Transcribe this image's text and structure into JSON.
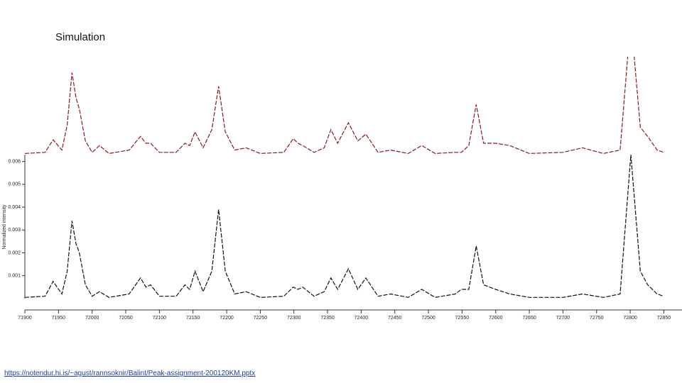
{
  "chart_data": [
    {
      "type": "line",
      "title": "Simulation",
      "color": "#8b1a1a",
      "dashed": true,
      "xlim": [
        71900,
        72877
      ],
      "ylim": [
        0,
        0.0043
      ],
      "x": [
        71900,
        71930,
        71942,
        71955,
        71963,
        71970,
        71976,
        71981,
        71990,
        72000,
        72011,
        72025,
        72055,
        72072,
        72080,
        72087,
        72100,
        72125,
        72138,
        72145,
        72153,
        72165,
        72178,
        72188,
        72198,
        72212,
        72229,
        72250,
        72285,
        72299,
        72306,
        72313,
        72330,
        72345,
        72355,
        72365,
        72381,
        72395,
        72407,
        72425,
        72444,
        72470,
        72490,
        72510,
        72540,
        72549,
        72560,
        72571,
        72582,
        72600,
        72621,
        72650,
        72700,
        72729,
        72760,
        72785,
        72801,
        72815,
        72826,
        72840,
        72850
      ],
      "values": [
        5e-05,
        0.0001,
        0.00065,
        0.0002,
        0.0013,
        0.0036,
        0.0025,
        0.002,
        0.0006,
        0.0001,
        0.0004,
        5e-05,
        0.0002,
        0.0008,
        0.0005,
        0.0005,
        0.0001,
        0.0001,
        0.0005,
        0.0004,
        0.001,
        0.0003,
        0.0011,
        0.003,
        0.001,
        0.0002,
        0.0003,
        5e-05,
        0.0001,
        0.0007,
        0.0005,
        0.0004,
        0.0001,
        0.0003,
        0.0011,
        0.0005,
        0.0014,
        0.0006,
        0.0009,
        0.0001,
        0.0002,
        5e-05,
        0.0004,
        5e-05,
        0.0001,
        0.0001,
        0.0004,
        0.0022,
        0.0005,
        0.0005,
        0.0004,
        5e-05,
        0.0001,
        0.0003,
        5e-05,
        0.0002,
        0.006,
        0.0012,
        0.0008,
        0.0002,
        0.0001
      ]
    },
    {
      "type": "line",
      "color": "#111111",
      "dashed": true,
      "ylabel": "Normalized intensity",
      "xlim": [
        71900,
        72877
      ],
      "ylim": [
        -0.0005,
        0.0063
      ],
      "yticks": [
        0.001,
        0.002,
        0.003,
        0.004,
        0.005,
        0.006
      ],
      "xticks": [
        71900,
        71950,
        72000,
        72050,
        72100,
        72150,
        72200,
        72250,
        72300,
        72350,
        72400,
        72450,
        72500,
        72550,
        72600,
        72650,
        72700,
        72750,
        72800,
        72850
      ],
      "x": [
        71900,
        71930,
        71942,
        71955,
        71963,
        71970,
        71976,
        71981,
        71990,
        72000,
        72011,
        72025,
        72055,
        72072,
        72080,
        72087,
        72100,
        72125,
        72138,
        72145,
        72153,
        72165,
        72178,
        72188,
        72198,
        72212,
        72229,
        72250,
        72285,
        72299,
        72306,
        72313,
        72330,
        72345,
        72355,
        72365,
        72381,
        72395,
        72407,
        72425,
        72444,
        72470,
        72490,
        72510,
        72540,
        72549,
        72560,
        72571,
        72582,
        72600,
        72621,
        72650,
        72700,
        72729,
        72760,
        72785,
        72801,
        72815,
        72826,
        72840,
        72850
      ],
      "values": [
        5e-05,
        0.0001,
        0.00075,
        0.0002,
        0.0012,
        0.0034,
        0.0024,
        0.002,
        0.0006,
        0.0001,
        0.0003,
        5e-05,
        0.0002,
        0.0009,
        0.0005,
        0.0006,
        0.0001,
        0.0001,
        0.0006,
        0.0004,
        0.0012,
        0.0003,
        0.0012,
        0.0039,
        0.0012,
        0.0002,
        0.0003,
        5e-05,
        0.0001,
        0.0005,
        0.0004,
        0.0005,
        0.0001,
        0.0003,
        0.0009,
        0.0004,
        0.0013,
        0.0004,
        0.0009,
        0.0001,
        0.0002,
        5e-05,
        0.0004,
        5e-05,
        0.0002,
        0.0004,
        0.0004,
        0.0023,
        0.0006,
        0.0004,
        0.0002,
        5e-05,
        5e-05,
        0.0002,
        5e-05,
        0.0002,
        0.0063,
        0.0012,
        0.0006,
        0.0002,
        0.0001
      ]
    }
  ],
  "footer": {
    "link": "https://notendur.hi.is/~agust/rannsoknir/Balint/Peak-assignment-200120KM.pptx"
  }
}
